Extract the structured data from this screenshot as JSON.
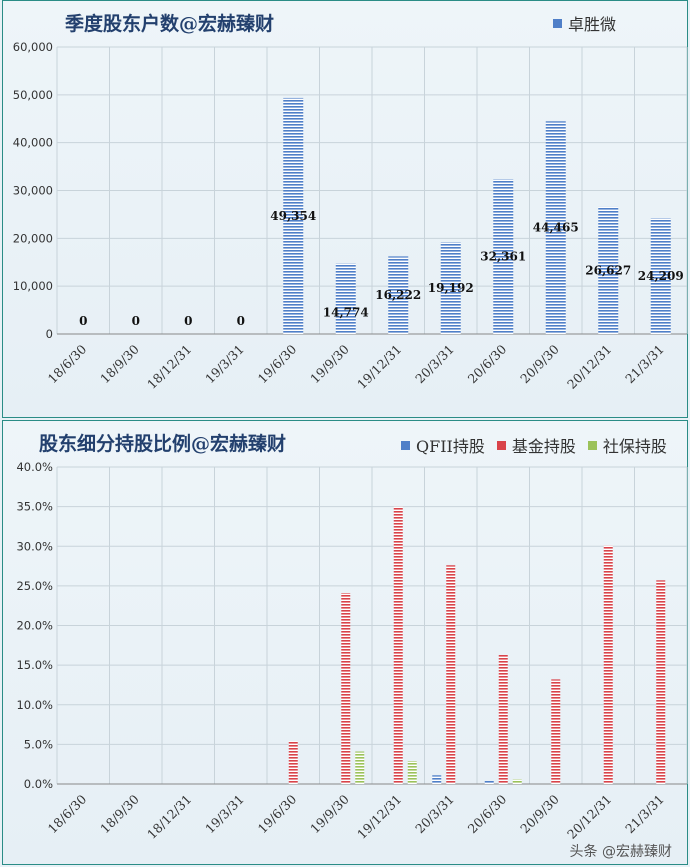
{
  "chart_data": [
    {
      "type": "bar",
      "title": "季度股东户数@宏赫臻财",
      "categories": [
        "18/6/30",
        "18/9/30",
        "18/12/31",
        "19/3/31",
        "19/6/30",
        "19/9/30",
        "19/12/31",
        "20/3/31",
        "20/6/30",
        "20/9/30",
        "20/12/31",
        "21/3/31"
      ],
      "series": [
        {
          "name": "卓胜微",
          "values": [
            0,
            0,
            0,
            0,
            49354,
            14774,
            16222,
            19192,
            32361,
            44465,
            26627,
            24209
          ],
          "color": "#4f7fc8"
        }
      ],
      "data_labels": [
        "0",
        "0",
        "0",
        "0",
        "49,354",
        "14,774",
        "16,222",
        "19,192",
        "32,361",
        "44,465",
        "26,627",
        "24,209"
      ],
      "ylim": [
        0,
        60000
      ],
      "yticks": [
        "0",
        "10,000",
        "20,000",
        "30,000",
        "40,000",
        "50,000",
        "60,000"
      ],
      "grid": true,
      "legend_position": "top-right"
    },
    {
      "type": "bar",
      "title": "股东细分持股比例@宏赫臻财",
      "categories": [
        "18/6/30",
        "18/9/30",
        "18/12/31",
        "19/3/31",
        "19/6/30",
        "19/9/30",
        "19/12/31",
        "20/3/31",
        "20/6/30",
        "20/9/30",
        "20/12/31",
        "21/3/31"
      ],
      "series": [
        {
          "name": "QFII持股",
          "values": [
            0,
            0,
            0,
            0,
            0,
            0,
            0,
            0.011,
            0.004,
            0,
            0,
            0
          ],
          "color": "#4f7fc8"
        },
        {
          "name": "基金持股",
          "values": [
            0,
            0,
            0,
            0,
            0.054,
            0.241,
            0.35,
            0.276,
            0.163,
            0.132,
            0.301,
            0.257
          ],
          "color": "#d9434a"
        },
        {
          "name": "社保持股",
          "values": [
            0,
            0,
            0,
            0,
            0,
            0.041,
            0.029,
            0,
            0.006,
            0,
            0,
            0
          ],
          "color": "#9bc25a"
        }
      ],
      "ylim": [
        0,
        0.4
      ],
      "yticks": [
        "0.0%",
        "5.0%",
        "10.0%",
        "15.0%",
        "20.0%",
        "25.0%",
        "30.0%",
        "35.0%",
        "40.0%"
      ],
      "grid": true,
      "legend_position": "top-right"
    }
  ],
  "watermark": "头条 @宏赫臻财"
}
